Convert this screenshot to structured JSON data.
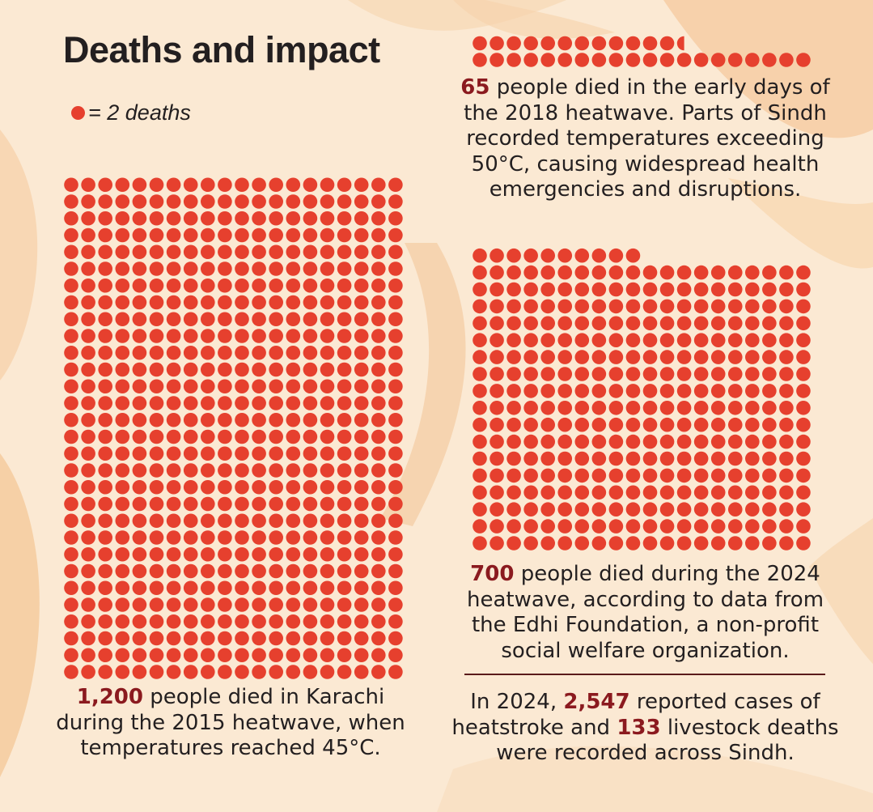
{
  "title": "Deaths and impact",
  "legend": {
    "label": "= 2 deaths",
    "dot_color": "#e6402e"
  },
  "colors": {
    "dot": "#e6402e",
    "highlight": "#8b1a1f",
    "text": "#231f20",
    "background": "#fbe9d3"
  },
  "chart_data": [
    {
      "type": "waffle",
      "unit": "2 deaths per dot",
      "value": 1200,
      "dots": 600,
      "caption_number": "1,200",
      "caption_text": " people died in Karachi during the 2015 heatwave, when temperatures reached 45°C."
    },
    {
      "type": "waffle",
      "unit": "2 deaths per dot",
      "value": 65,
      "dots": 32.5,
      "caption_number": "65",
      "caption_text": " people died in the early days of the 2018 heatwave. Parts of Sindh recorded temperatures exceeding 50°C, causing widespread health emergencies and disruptions."
    },
    {
      "type": "waffle",
      "unit": "2 deaths per dot",
      "value": 700,
      "dots": 350,
      "caption_number": "700",
      "caption_text": " people died during the 2024 heatwave, according to data from the Edhi Foundation, a non-profit social welfare organization."
    }
  ],
  "footnote": {
    "prefix": "In 2024, ",
    "cases_number": "2,547",
    "middle": " reported cases of heatstroke and ",
    "livestock_number": "133",
    "suffix": " livestock deaths were recorded across Sindh."
  }
}
